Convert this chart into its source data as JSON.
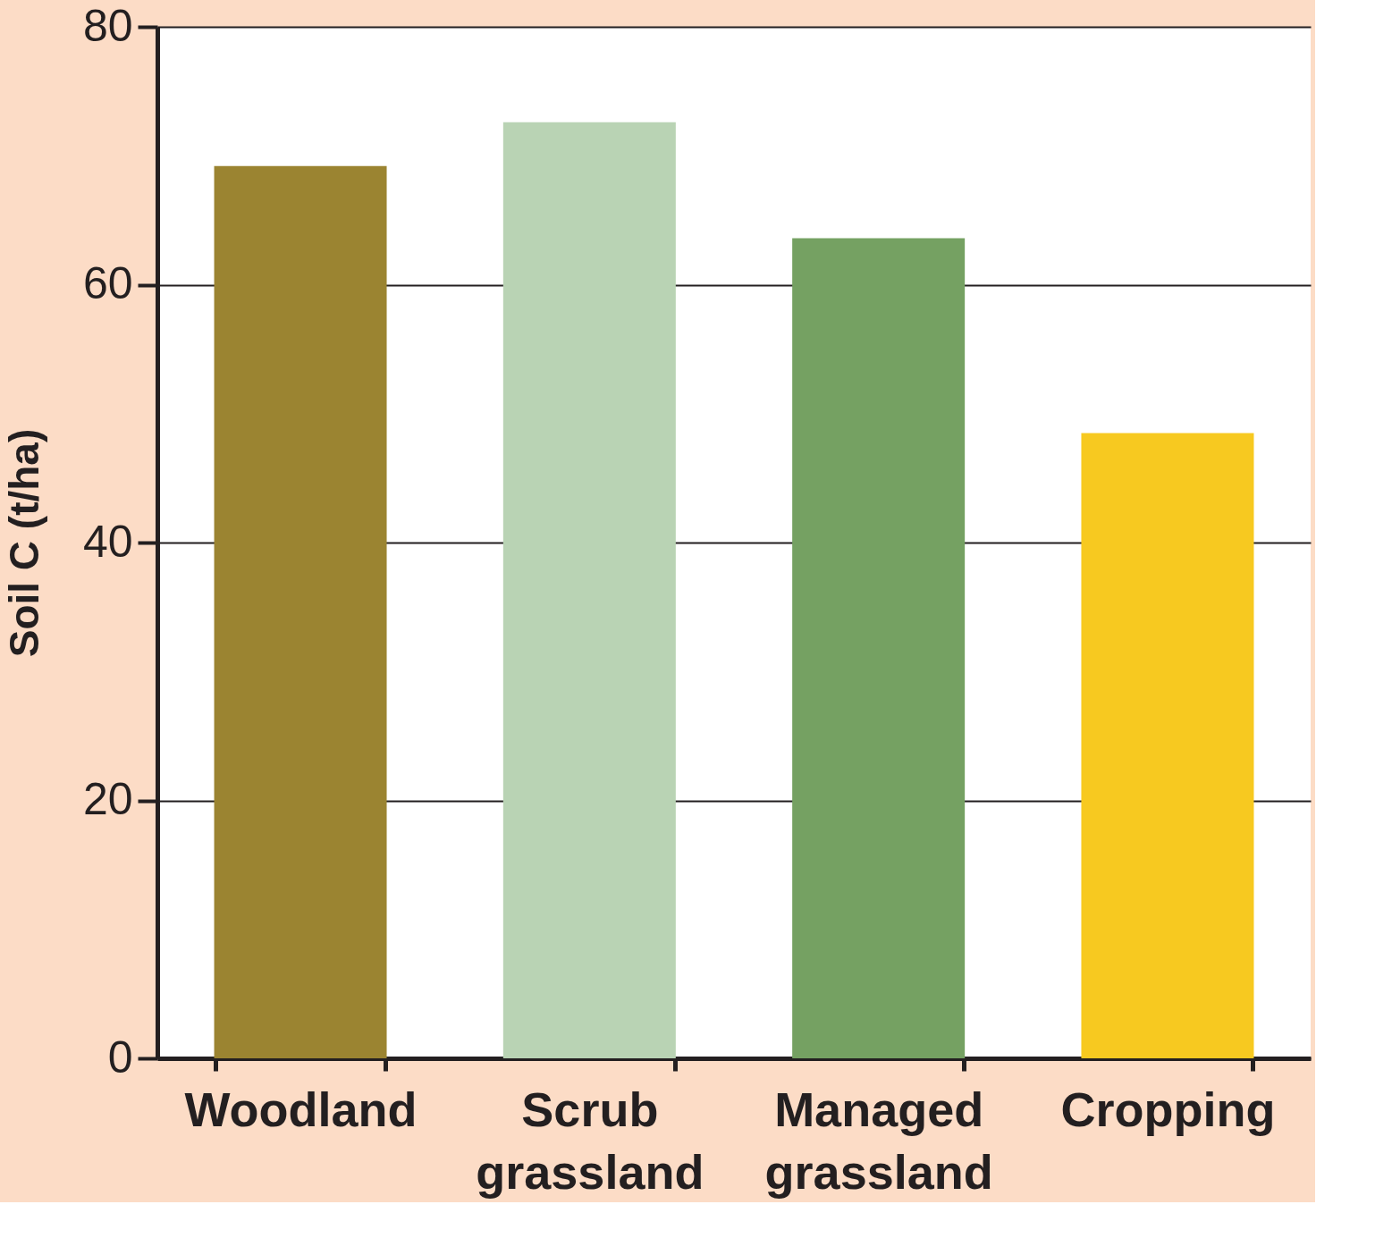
{
  "chart_data": {
    "type": "bar",
    "ylabel": "Soil C (t/ha)",
    "categories": [
      "Woodland",
      "Scrub grassland",
      "Managed grassland",
      "Cropping"
    ],
    "values": [
      69.2,
      72.6,
      63.6,
      48.5
    ],
    "colors": [
      "#9b8431",
      "#b9d3b4",
      "#75a162",
      "#f7c920"
    ],
    "ylim": [
      0,
      80
    ],
    "yticks": [
      0,
      20,
      40,
      60,
      80
    ],
    "grid": "y"
  }
}
